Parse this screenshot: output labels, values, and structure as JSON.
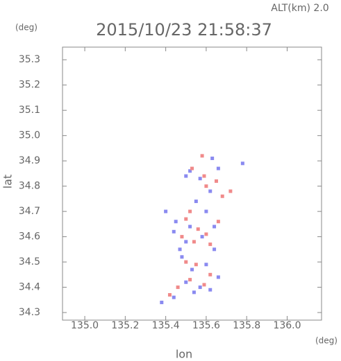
{
  "chart_data": {
    "type": "scatter",
    "title": "2015/10/23 21:58:37",
    "subtitle": "ALT(km) 2.0",
    "y_unit": "(deg)",
    "x_unit": "(deg)",
    "y_label": "lat",
    "x_label": "lon",
    "xlim": [
      134.89,
      136.17
    ],
    "ylim": [
      34.27,
      35.35
    ],
    "xticks": [
      {
        "value": 135.0,
        "label": "135.0"
      },
      135.2,
      135.4,
      135.6,
      135.8,
      {
        "value": 136.0,
        "label": "136.0"
      }
    ],
    "yticks": [
      34.3,
      34.4,
      34.5,
      34.6,
      34.7,
      34.8,
      34.9,
      {
        "value": 35.0,
        "label": "35.0"
      },
      35.1,
      35.2,
      35.3
    ],
    "grid": false,
    "series": [
      {
        "color": "#8a8af0",
        "x": [
          135.52,
          135.5,
          135.57,
          135.66,
          135.78,
          135.62,
          135.55,
          135.4,
          135.45,
          135.52,
          135.58,
          135.5,
          135.44,
          135.64,
          135.48,
          135.53,
          135.6,
          135.66,
          135.5,
          135.57,
          135.62,
          135.54,
          135.44,
          135.38,
          135.64,
          135.6,
          135.47,
          135.63
        ],
        "y": [
          34.86,
          34.84,
          34.83,
          34.87,
          34.89,
          34.78,
          34.74,
          34.7,
          34.66,
          34.64,
          34.6,
          34.58,
          34.62,
          34.55,
          34.52,
          34.47,
          34.49,
          34.44,
          34.42,
          34.4,
          34.39,
          34.38,
          34.36,
          34.34,
          34.64,
          34.7,
          34.55,
          34.91
        ]
      },
      {
        "color": "#f08a8a",
        "x": [
          135.58,
          135.53,
          135.6,
          135.65,
          135.68,
          135.59,
          135.52,
          135.5,
          135.56,
          135.6,
          135.54,
          135.62,
          135.5,
          135.55,
          135.62,
          135.52,
          135.46,
          135.59,
          135.48,
          135.66,
          135.72,
          135.42
        ],
        "y": [
          34.92,
          34.87,
          34.8,
          34.82,
          34.76,
          34.84,
          34.7,
          34.67,
          34.63,
          34.61,
          34.58,
          34.57,
          34.5,
          34.49,
          34.45,
          34.43,
          34.4,
          34.41,
          34.6,
          34.66,
          34.78,
          34.37
        ]
      }
    ]
  }
}
